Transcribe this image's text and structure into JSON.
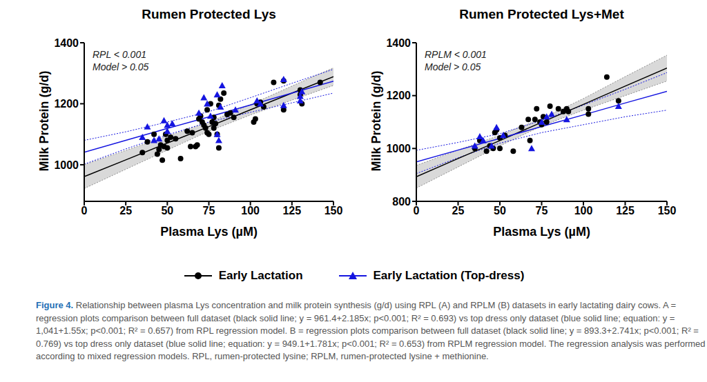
{
  "chart_data": [
    {
      "type": "scatter",
      "title": "Rumen Protected Lys",
      "x_label": "Plasma Lys (µM)",
      "y_label": "Milk Protein (g/d)",
      "annotations": [
        "RPL < 0.001",
        "Model > 0.05"
      ],
      "xlim": [
        0,
        150
      ],
      "xticks": [
        0,
        25,
        50,
        75,
        100,
        125,
        150
      ],
      "ylim": [
        880,
        1400
      ],
      "yticks": [
        1000,
        1200,
        1400
      ],
      "series": [
        {
          "name": "Early Lactation",
          "color": "#000000",
          "marker": "circle",
          "x": [
            35,
            38,
            42,
            44,
            45,
            46,
            47,
            48,
            49,
            50,
            50,
            52,
            55,
            58,
            62,
            64,
            65,
            67,
            68,
            69,
            70,
            71,
            72,
            73,
            74,
            74,
            75,
            76,
            77,
            78,
            78,
            79,
            80,
            81,
            81,
            82,
            84,
            86,
            88,
            90,
            102,
            103,
            104,
            106,
            108,
            114,
            120,
            120,
            130,
            130,
            131,
            142
          ],
          "values": [
            1040,
            1075,
            1100,
            1035,
            1050,
            1065,
            1015,
            1060,
            1100,
            1055,
            1080,
            1090,
            1085,
            1020,
            1110,
            1060,
            1105,
            1060,
            1065,
            1150,
            1160,
            1140,
            1130,
            1120,
            1180,
            1105,
            1100,
            1200,
            1140,
            1120,
            1155,
            1135,
            1100,
            1195,
            1055,
            1215,
            1235,
            1165,
            1170,
            1155,
            1140,
            1150,
            1200,
            1205,
            1190,
            1270,
            1275,
            1180,
            1245,
            1230,
            1200,
            1270
          ],
          "fit": {
            "x": [
              0,
              25,
              50,
              75,
              100,
              125,
              150
            ],
            "values": [
              961,
              1016,
              1071,
              1125,
              1180,
              1235,
              1289
            ],
            "ci_lower": [
              922,
              985,
              1048,
              1110,
              1163,
              1212,
              1260
            ],
            "ci_upper": [
              1000,
              1047,
              1094,
              1140,
              1197,
              1258,
              1318
            ]
          }
        },
        {
          "name": "Early Lactation (Top-dress)",
          "color": "#1515e0",
          "marker": "triangle",
          "x": [
            35,
            38,
            42,
            45,
            48,
            50,
            50,
            53,
            69,
            72,
            74,
            76,
            80,
            80,
            81,
            82,
            83,
            91,
            104,
            106,
            120,
            120,
            130,
            130,
            131
          ],
          "values": [
            1090,
            1125,
            1080,
            1085,
            1145,
            1110,
            1130,
            1135,
            1170,
            1220,
            1200,
            1160,
            1100,
            1230,
            1080,
            1190,
            1260,
            1180,
            1210,
            1200,
            1195,
            1280,
            1210,
            1225,
            1240
          ],
          "fit": {
            "x": [
              0,
              25,
              50,
              75,
              100,
              125,
              150
            ],
            "values": [
              1041,
              1080,
              1119,
              1157,
              1196,
              1235,
              1274
            ],
            "ci_lower": [
              1002,
              1052,
              1098,
              1140,
              1172,
              1203,
              1235
            ],
            "ci_upper": [
              1080,
              1108,
              1140,
              1174,
              1220,
              1267,
              1313
            ]
          }
        }
      ]
    },
    {
      "type": "scatter",
      "title": "Rumen Protected Lys+Met",
      "x_label": "Plasma Lys (µM)",
      "y_label": "Milk Protein (g/d)",
      "annotations": [
        "RPLM < 0.001",
        "Model > 0.05"
      ],
      "xlim": [
        0,
        150
      ],
      "xticks": [
        0,
        25,
        50,
        75,
        100,
        125,
        150
      ],
      "ylim": [
        800,
        1400
      ],
      "yticks": [
        800,
        1000,
        1200,
        1400
      ],
      "series": [
        {
          "name": "Early Lactation",
          "color": "#000000",
          "marker": "circle",
          "x": [
            35,
            38,
            42,
            44,
            46,
            47,
            48,
            50,
            50,
            53,
            58,
            63,
            67,
            68,
            71,
            72,
            74,
            75,
            76,
            78,
            80,
            85,
            88,
            90,
            91,
            103,
            103,
            114,
            121
          ],
          "values": [
            1000,
            1030,
            990,
            1010,
            1000,
            1060,
            1070,
            1000,
            1040,
            1050,
            990,
            1080,
            1110,
            1030,
            1110,
            1150,
            1100,
            1090,
            1120,
            1100,
            1160,
            1150,
            1140,
            1150,
            1140,
            1130,
            1150,
            1270,
            1180
          ],
          "fit": {
            "x": [
              0,
              25,
              50,
              75,
              100,
              125,
              150
            ],
            "values": [
              893,
              962,
              1030,
              1099,
              1167,
              1236,
              1304
            ],
            "ci_lower": [
              850,
              930,
              1010,
              1085,
              1145,
              1200,
              1255
            ],
            "ci_upper": [
              936,
              994,
              1050,
              1113,
              1189,
              1272,
              1353
            ]
          }
        },
        {
          "name": "Early Lactation (Top-dress)",
          "color": "#1515e0",
          "marker": "triangle",
          "x": [
            35,
            38,
            40,
            45,
            48,
            52,
            69,
            75,
            78,
            81,
            90,
            121
          ],
          "values": [
            1010,
            1045,
            1030,
            1010,
            1080,
            1050,
            1000,
            1100,
            1120,
            1130,
            1110,
            1160
          ],
          "fit": {
            "x": [
              0,
              25,
              50,
              75,
              100,
              125,
              150
            ],
            "values": [
              949,
              994,
              1038,
              1083,
              1127,
              1172,
              1216
            ],
            "ci_lower": [
              905,
              965,
              1020,
              1060,
              1090,
              1120,
              1145
            ],
            "ci_upper": [
              993,
              1023,
              1056,
              1106,
              1164,
              1224,
              1287
            ]
          }
        }
      ]
    }
  ],
  "caption": {
    "label": "Figure 4.",
    "text": "Relationship between plasma Lys concentration and milk protein synthesis (g/d) using RPL (A) and RPLM (B) datasets in early lactating dairy cows. A = regression plots comparison between full dataset (black solid line; y = 961.4+2.185x; p<0.001; R² = 0.693) vs top dress only dataset (blue solid line; equation: y = 1,041+1.55x; p<0.001; R² = 0.657) from RPL regression model. B = regression plots comparison between full dataset (black solid line; y = 893.3+2.741x; p<0.001; R² = 0.769) vs top dress only dataset (blue solid line; equation: y = 949.1+1.781x; p<0.001; R² = 0.653) from RPLM regression model. The regression analysis was performed according to mixed regression models. RPL, rumen-protected lysine; RPLM, rumen-protected lysine + methionine."
  }
}
